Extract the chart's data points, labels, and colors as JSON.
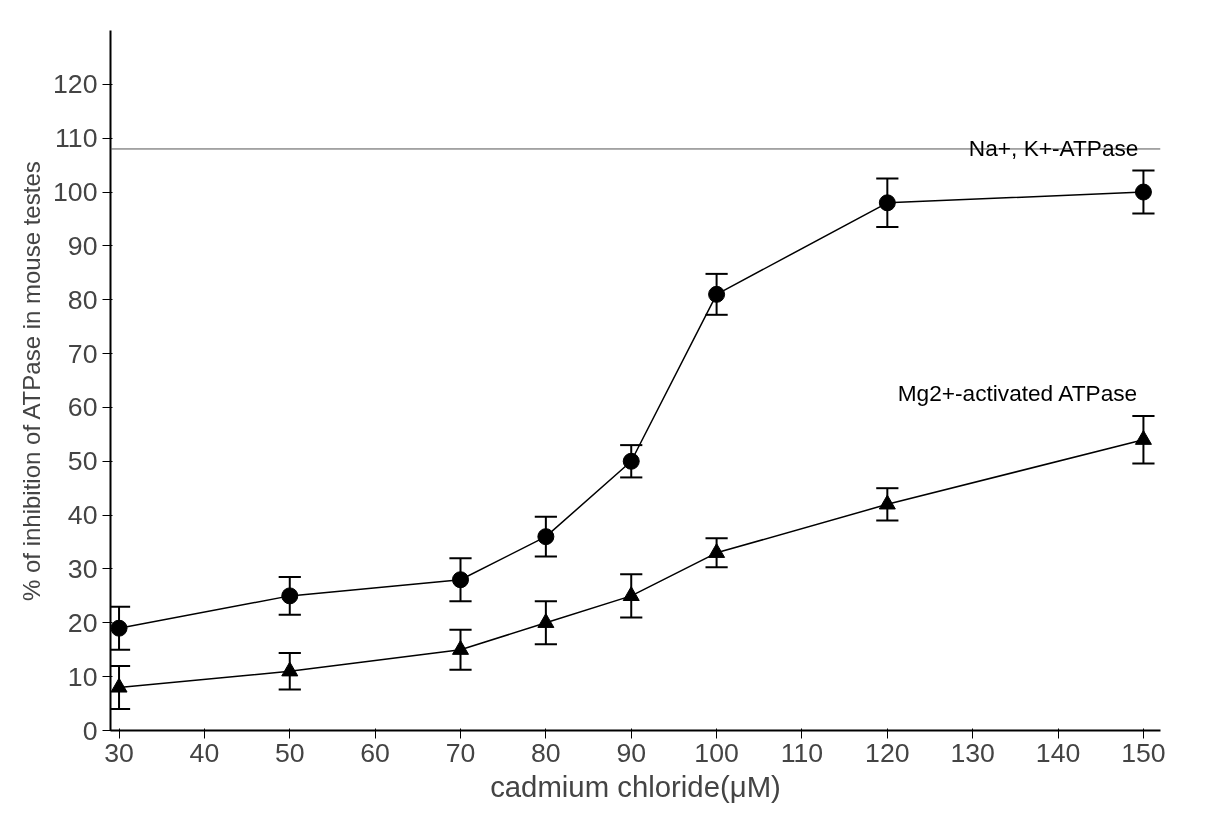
{
  "chart_data": {
    "type": "line",
    "xlabel": "cadmium chloride(μM)",
    "ylabel": "% of inhibition of ATPase in mouse testes",
    "x": [
      30,
      50,
      70,
      80,
      90,
      100,
      120,
      150
    ],
    "series": [
      {
        "name": "Na+, K+-ATPase",
        "color": "#000000",
        "marker": "circle",
        "values": [
          19,
          25,
          28,
          36,
          50,
          81,
          98,
          100
        ],
        "errors": [
          4,
          3.5,
          4,
          3.7,
          3,
          3.8,
          4.5,
          4
        ]
      },
      {
        "name": "Mg2+-activated ATPase",
        "color": "#000000",
        "marker": "triangle",
        "values": [
          8,
          11,
          15,
          20,
          25,
          33,
          42,
          54
        ],
        "errors": [
          4,
          3.4,
          3.7,
          4,
          4,
          2.7,
          3,
          4.4
        ]
      }
    ],
    "ref_lines": [
      {
        "axis": "y",
        "value": 108,
        "label": null,
        "color": "#555555"
      }
    ],
    "xlim": [
      29,
      152
    ],
    "ylim": [
      0,
      130
    ],
    "xticks": [
      30,
      40,
      50,
      60,
      70,
      80,
      90,
      100,
      110,
      120,
      130,
      140,
      150
    ],
    "yticks": [
      0,
      10,
      20,
      30,
      40,
      50,
      60,
      70,
      80,
      90,
      100,
      110,
      120
    ],
    "grid": false,
    "line_style": "solid"
  }
}
